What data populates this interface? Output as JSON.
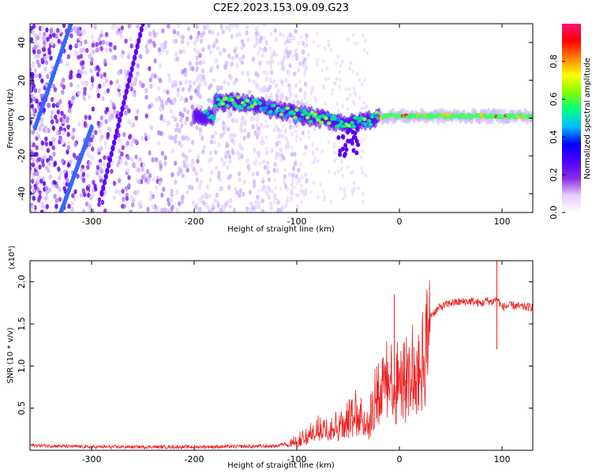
{
  "chart_data": [
    {
      "type": "heatmap",
      "title": "C2E2.2023.153.09.09.G23",
      "xlabel": "Height of straight line (km)",
      "ylabel": "Frequency (Hz)",
      "xlim": [
        -360,
        130
      ],
      "ylim": [
        -50,
        50
      ],
      "x_ticks": [
        -300,
        -200,
        -100,
        0,
        100
      ],
      "y_ticks": [
        -40,
        -20,
        0,
        20,
        40
      ],
      "colorbar": {
        "label": "Normalized spectral amplitude",
        "range": [
          0.0,
          1.0
        ],
        "ticks": [
          "0.0",
          "0.2",
          "0.4",
          "0.6",
          "0.8"
        ],
        "colors": [
          "#ffffff",
          "#e6ccff",
          "#8a2be2",
          "#4b00ff",
          "#0000ff",
          "#00bfff",
          "#00ff80",
          "#80ff00",
          "#ffff00",
          "#ff8000",
          "#ff0000",
          "#ff1070"
        ]
      },
      "ridge": [
        {
          "x": -180,
          "y": 9
        },
        {
          "x": -150,
          "y": 8
        },
        {
          "x": -120,
          "y": 4
        },
        {
          "x": -100,
          "y": 2
        },
        {
          "x": -80,
          "y": 0
        },
        {
          "x": -60,
          "y": -2
        },
        {
          "x": -45,
          "y": -3
        },
        {
          "x": -30,
          "y": -1
        },
        {
          "x": -15,
          "y": 1
        },
        {
          "x": 0,
          "y": 1
        },
        {
          "x": 30,
          "y": 1
        },
        {
          "x": 60,
          "y": 1
        },
        {
          "x": 90,
          "y": 1
        },
        {
          "x": 130,
          "y": 1
        }
      ],
      "streaks": [
        {
          "x0": -355,
          "y0": -5,
          "x1": -320,
          "y1": 50
        },
        {
          "x0": -330,
          "y0": -50,
          "x1": -300,
          "y1": -5
        },
        {
          "x0": -290,
          "y0": -40,
          "x1": -250,
          "y1": 50
        }
      ],
      "noise_extent_x": [
        -360,
        -130
      ]
    },
    {
      "type": "line",
      "xlabel": "Height of straight line (km)",
      "ylabel": "SNR (10 * v/v)",
      "y_multiplier": "(x10⁴)",
      "xlim": [
        -360,
        130
      ],
      "ylim": [
        0,
        2.25
      ],
      "x_ticks": [
        -300,
        -200,
        -100,
        0,
        100
      ],
      "y_ticks": [
        "0.5",
        "1.0",
        "1.5",
        "2.0"
      ],
      "y_tick_values": [
        0.5,
        1.0,
        1.5,
        2.0
      ],
      "series": [
        {
          "color": "#ee2222",
          "x": [
            -360,
            -300,
            -200,
            -120,
            -100,
            -90,
            -80,
            -70,
            -60,
            -50,
            -40,
            -30,
            -25,
            -20,
            -15,
            -10,
            -5,
            0,
            5,
            10,
            15,
            20,
            25,
            30,
            40,
            50,
            60,
            70,
            80,
            85,
            90,
            95,
            100,
            110,
            120,
            130
          ],
          "y": [
            0.06,
            0.04,
            0.04,
            0.05,
            0.12,
            0.18,
            0.28,
            0.33,
            0.36,
            0.42,
            0.55,
            0.4,
            0.7,
            0.95,
            0.85,
            1.1,
            0.85,
            1.1,
            0.95,
            1.15,
            1.25,
            1.1,
            1.4,
            1.6,
            1.7,
            1.75,
            1.76,
            1.77,
            1.74,
            1.78,
            1.76,
            1.8,
            1.7,
            1.72,
            1.7,
            1.7
          ]
        }
      ],
      "spikes": [
        {
          "x": 95,
          "low": 1.2,
          "high": 2.25
        },
        {
          "x": -5,
          "low": 0.6,
          "high": 1.85
        }
      ]
    }
  ]
}
